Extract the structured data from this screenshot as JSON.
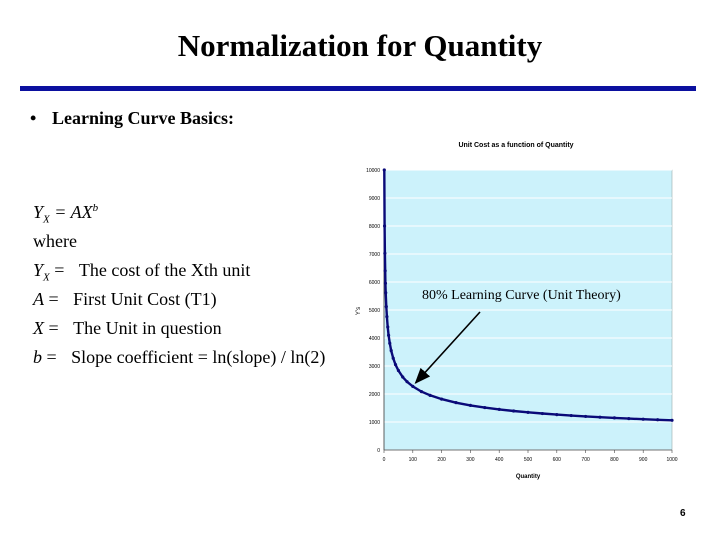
{
  "slide": {
    "title": "Normalization for Quantity",
    "bullet": "Learning Curve Basics:",
    "page_number": "6",
    "formulas": {
      "line1_lhs": "Y",
      "line1_sub": "X",
      "line1_eq": "= AX",
      "line1_sup": "b",
      "line2": "where",
      "line3_lhs": "Y",
      "line3_sub": "X",
      "line3_eq": "=",
      "line3_text": "The cost of  the Xth unit",
      "line4_lhs": "A",
      "line4_eq": "=",
      "line4_text": "First Unit Cost (T1)",
      "line5_lhs": "X",
      "line5_eq": "=",
      "line5_text": "The Unit in question",
      "line6_lhs": "b",
      "line6_eq": "=",
      "line6_text": "Slope coefficient = ln(slope) / ln(2)"
    }
  },
  "colors": {
    "title_rule": "#0b109f",
    "plot_background": "#ccf2fb",
    "curve": "#0a0a78"
  },
  "chart_data": {
    "type": "line",
    "title": "Unit Cost as a function of Quantity",
    "xlabel": "Quantity",
    "ylabel": "Y's",
    "xlim": [
      0,
      1000
    ],
    "ylim": [
      0,
      10000
    ],
    "x_ticks": [
      0,
      100,
      200,
      300,
      400,
      500,
      600,
      700,
      800,
      900,
      1000
    ],
    "y_ticks": [
      0,
      1000,
      2000,
      3000,
      4000,
      5000,
      6000,
      7000,
      8000,
      9000,
      10000
    ],
    "grid": true,
    "series": [
      {
        "x": [
          1,
          2,
          3,
          4,
          5,
          6,
          8,
          10,
          13,
          16,
          20,
          25,
          32,
          40,
          50,
          65,
          80,
          100,
          130,
          160,
          200,
          250,
          300,
          350,
          400,
          450,
          500,
          550,
          600,
          650,
          700,
          750,
          800,
          850,
          900,
          950,
          1000
        ],
        "y": [
          10000,
          8000,
          7021,
          6400,
          5956,
          5617,
          5120,
          4765,
          4395,
          4096,
          3812,
          3548,
          3277,
          3050,
          2838,
          2607,
          2440,
          2271,
          2086,
          1952,
          1817,
          1691,
          1594,
          1515,
          1450,
          1394,
          1345,
          1302,
          1264,
          1230,
          1199,
          1171,
          1146,
          1122,
          1100,
          1080,
          1061
        ]
      }
    ],
    "annotations": [
      {
        "text": "80% Learning Curve (Unit Theory)",
        "arrow_to": [
          110,
          2400
        ]
      }
    ]
  }
}
